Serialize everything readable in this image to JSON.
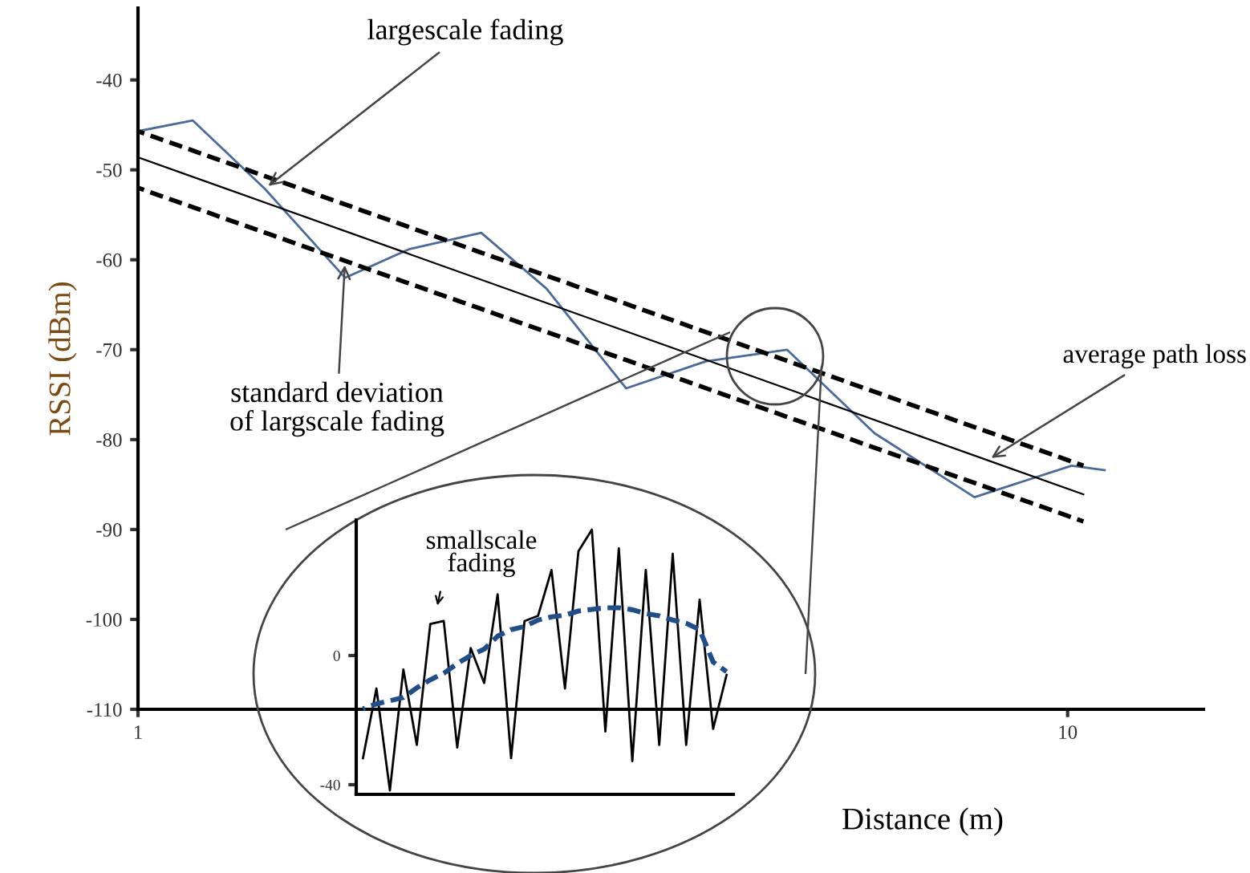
{
  "chart_data": [
    {
      "type": "line",
      "xlabel": "Distance (m)",
      "ylabel": "RSSI (dBm)",
      "log": "x",
      "xlim": [
        1,
        14
      ],
      "xticks": [
        1,
        10
      ],
      "ylim": [
        -110,
        -32
      ],
      "yticks": [
        -40,
        -50,
        -60,
        -70,
        -80,
        -90,
        -100,
        -110
      ],
      "grid": false,
      "legend": false,
      "series": [
        {
          "color": "#4a6a9c",
          "line_style": "solid",
          "x": [
            1.0,
            1.145,
            1.369,
            1.67,
            1.96,
            2.34,
            2.75,
            3.35,
            4.08,
            4.99,
            6.2,
            7.94,
            10.1,
            10.96
          ],
          "values": [
            -45.7,
            -44.5,
            -52.1,
            -62.0,
            -58.8,
            -57.0,
            -63.2,
            -74.3,
            -71.3,
            -70.0,
            -79.3,
            -86.4,
            -82.9,
            -83.4
          ]
        },
        {
          "color": "#000000",
          "line_style": "solid",
          "x": [
            1.0,
            10.4
          ],
          "values": [
            -48.6,
            -86.1
          ]
        },
        {
          "color": "#000000",
          "line_style": "dashed",
          "x": [
            1.0,
            10.4
          ],
          "values": [
            -45.7,
            -82.9
          ]
        },
        {
          "color": "#000000",
          "line_style": "dashed",
          "x": [
            1.0,
            10.4
          ],
          "values": [
            -52.0,
            -89.1
          ]
        }
      ],
      "annotations": [
        {
          "text": "largescale fading",
          "x": 1.369,
          "y": -52.1
        },
        {
          "text": "standard deviation\nof largscale fading",
          "x": 1.67,
          "y": -60.1
        },
        {
          "text": "average path loss",
          "x": 8.2,
          "y": -82.3
        }
      ]
    },
    {
      "type": "line",
      "categories": [
        null,
        null,
        null,
        null,
        null,
        null,
        null,
        null,
        null,
        null,
        null,
        null,
        null,
        null,
        null,
        null,
        null,
        null,
        null,
        null,
        null,
        null,
        null,
        null,
        null,
        null,
        null,
        null
      ],
      "ylim": [
        -43,
        42
      ],
      "yticks": [
        0,
        -40
      ],
      "tick_labels": "y",
      "grid": false,
      "legend": false,
      "series": [
        {
          "color": "#000000",
          "line_style": "solid",
          "values": [
            -31.8,
            -10.2,
            -41.8,
            -4.3,
            -27.7,
            9.8,
            10.7,
            -28.5,
            2.3,
            -8.5,
            19,
            -31.8,
            10.7,
            12.3,
            26.5,
            -10.2,
            32.3,
            39,
            -23.5,
            33.2,
            -32.7,
            26.5,
            -27.7,
            31.5,
            -27.7,
            17.3,
            -22.7,
            -6
          ]
        },
        {
          "color": "#1f4e8c",
          "line_style": "dashed",
          "values": [
            -16.5,
            -15,
            -14,
            -13,
            -10,
            -7.5,
            -5.5,
            -2.5,
            0,
            2,
            6,
            8,
            9,
            11,
            12,
            12.5,
            13.8,
            14.3,
            14.8,
            14.8,
            14.2,
            13,
            12.3,
            11,
            10,
            8,
            -2,
            -5
          ]
        }
      ],
      "annotations": [
        "smallscale\nfading"
      ]
    }
  ]
}
